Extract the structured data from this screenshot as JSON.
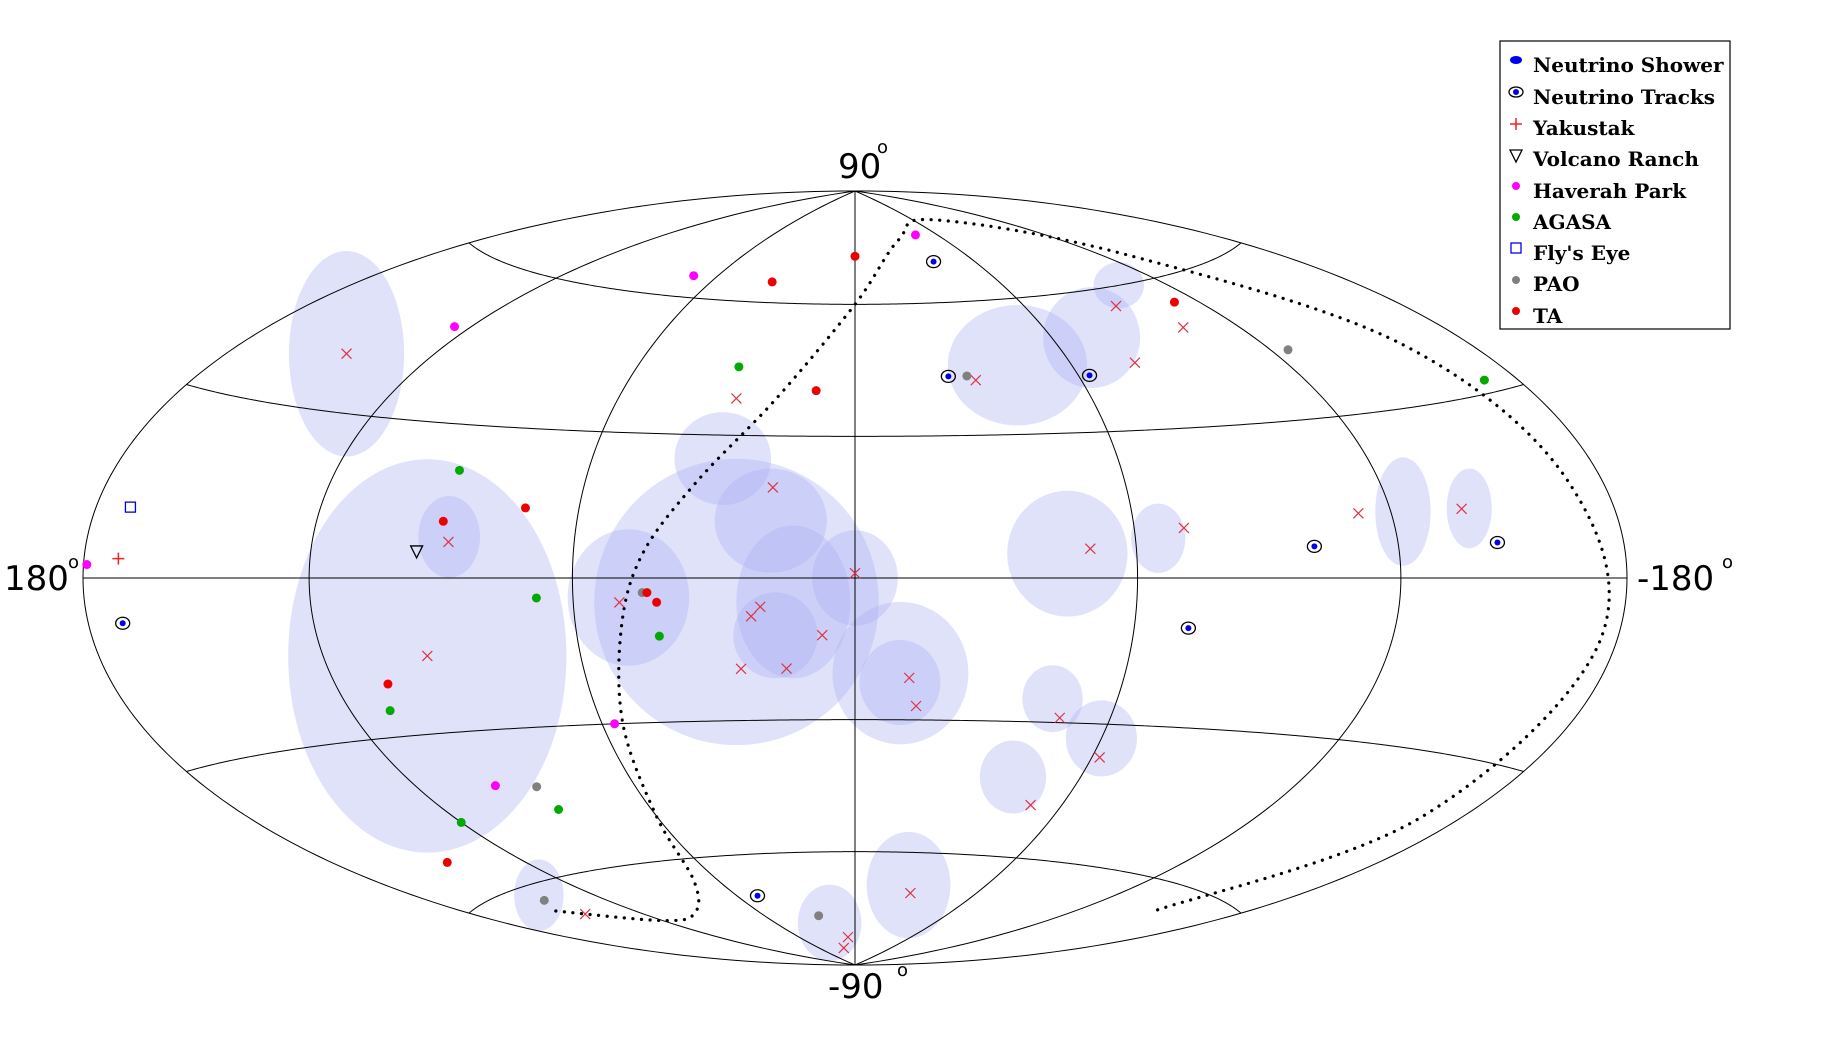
{
  "chart_data": {
    "type": "scatter",
    "projection": "Aitoff-Hammer (galactic coordinates)",
    "axis_labels": {
      "top": "90",
      "bottom": "-90",
      "left": "180",
      "right": "-180",
      "degree_symbol": "o"
    },
    "lon_range": [
      180,
      -180
    ],
    "lat_range": [
      -90,
      90
    ],
    "grid": true,
    "legend_position": "top-right",
    "colors": {
      "hotspot_fill": "#aab0f0",
      "grid": "#000000",
      "neutrino": "#0000ee",
      "yakustak": "#ee2222",
      "volcano_ranch": "#000000",
      "haverah_park": "#ff00ff",
      "agasa": "#00aa00",
      "flys_eye": "#0000ee",
      "pao": "#808080",
      "ta": "#ee0000",
      "cross": "#dd3344",
      "supergalactic_plane": "#000000"
    },
    "legend": [
      {
        "label": "Neutrino Shower",
        "marker": "shower-dot"
      },
      {
        "label": "Neutrino Tracks",
        "marker": "track-ring"
      },
      {
        "label": "Yakustak",
        "marker": "plus"
      },
      {
        "label": "Volcano Ranch",
        "marker": "triangle-down"
      },
      {
        "label": "Haverah Park",
        "marker": "dot-magenta"
      },
      {
        "label": "AGASA",
        "marker": "dot-green"
      },
      {
        "label": "Fly's Eye",
        "marker": "square"
      },
      {
        "label": "PAO",
        "marker": "dot-gray"
      },
      {
        "label": "TA",
        "marker": "dot-red"
      }
    ],
    "hotspots": [
      {
        "lon": 145,
        "lat": 40,
        "rlon": 20,
        "rlat": 24,
        "tilt": 0
      },
      {
        "lon": 95,
        "lat": -15,
        "rlon": 32,
        "rlat": 38,
        "tilt": 0
      },
      {
        "lon": 88,
        "lat": 8,
        "rlon": 7,
        "rlat": 8,
        "tilt": 0
      },
      {
        "lon": 30,
        "lat": 25,
        "rlon": 11,
        "rlat": 10,
        "tilt": 0
      },
      {
        "lon": 18,
        "lat": 12,
        "rlon": 12,
        "rlat": 11,
        "tilt": 0
      },
      {
        "lon": 25,
        "lat": -5,
        "rlon": 30,
        "rlat": 30,
        "tilt": 0
      },
      {
        "lon": 48,
        "lat": -4,
        "rlon": 13,
        "rlat": 14,
        "tilt": 0
      },
      {
        "lon": 13,
        "lat": -5,
        "rlon": 12,
        "rlat": 16,
        "tilt": 0
      },
      {
        "lon": 0,
        "lat": 0,
        "rlon": 9,
        "rlat": 10,
        "tilt": 0
      },
      {
        "lon": 17,
        "lat": -12,
        "rlon": 9,
        "rlat": 9,
        "tilt": 0
      },
      {
        "lon": -10,
        "lat": -20,
        "rlon": 15,
        "rlat": 15,
        "tilt": 0
      },
      {
        "lon": -10,
        "lat": -22,
        "rlon": 9,
        "rlat": 9,
        "tilt": 0
      },
      {
        "lon": -45,
        "lat": 45,
        "rlon": 20,
        "rlat": 14,
        "tilt": 0
      },
      {
        "lon": -45,
        "lat": 5,
        "rlon": 13,
        "rlat": 13,
        "tilt": 0
      },
      {
        "lon": -65,
        "lat": 8,
        "rlon": 6,
        "rlat": 7,
        "tilt": 0
      },
      {
        "lon": -72,
        "lat": 50,
        "rlon": 16,
        "rlat": 12,
        "tilt": 0
      },
      {
        "lon": -103,
        "lat": 60,
        "rlon": 12,
        "rlat": 6,
        "tilt": 0
      },
      {
        "lon": -123,
        "lat": 12,
        "rlon": 7,
        "rlat": 10,
        "tilt": 0
      },
      {
        "lon": -140,
        "lat": 12,
        "rlon": 6,
        "rlat": 7,
        "tilt": 0
      },
      {
        "lon": -45,
        "lat": -25,
        "rlon": 7,
        "rlat": 7,
        "tilt": 0
      },
      {
        "lon": -60,
        "lat": -33,
        "rlon": 9,
        "rlat": 8,
        "tilt": 0
      },
      {
        "lon": -42,
        "lat": -42,
        "rlon": 9,
        "rlat": 8,
        "tilt": 0
      },
      {
        "lon": -25,
        "lat": -68,
        "rlon": 20,
        "rlat": 13,
        "tilt": 0
      },
      {
        "lon": 20,
        "lat": -78,
        "rlon": 25,
        "rlat": 10,
        "tilt": 0
      },
      {
        "lon": 140,
        "lat": -62,
        "rlon": 15,
        "rlat": 9,
        "tilt": 0
      }
    ],
    "hotspot_centers": [
      {
        "lon": 145,
        "lat": 40
      },
      {
        "lon": 95,
        "lat": -15
      },
      {
        "lon": 88,
        "lat": 7
      },
      {
        "lon": 30,
        "lat": 38
      },
      {
        "lon": 18,
        "lat": 19
      },
      {
        "lon": 50,
        "lat": -5
      },
      {
        "lon": 20,
        "lat": -6
      },
      {
        "lon": 25,
        "lat": -19
      },
      {
        "lon": 22,
        "lat": -8
      },
      {
        "lon": 0,
        "lat": 1
      },
      {
        "lon": 7,
        "lat": -12
      },
      {
        "lon": 15,
        "lat": -19
      },
      {
        "lon": -12,
        "lat": -21
      },
      {
        "lon": -14,
        "lat": -27
      },
      {
        "lon": -32,
        "lat": 42
      },
      {
        "lon": -50,
        "lat": 6
      },
      {
        "lon": -71,
        "lat": 10
      },
      {
        "lon": -78,
        "lat": 44
      },
      {
        "lon": -91,
        "lat": 56
      },
      {
        "lon": -103,
        "lat": 50
      },
      {
        "lon": -112,
        "lat": 12
      },
      {
        "lon": -138,
        "lat": 12
      },
      {
        "lon": -48,
        "lat": -29
      },
      {
        "lon": -62,
        "lat": -37
      },
      {
        "lon": -51,
        "lat": -48
      },
      {
        "lon": -28,
        "lat": -70
      },
      {
        "lon": 8,
        "lat": -82
      },
      {
        "lon": 20,
        "lat": -85
      },
      {
        "lon": 143,
        "lat": -67
      }
    ],
    "neutrino_tracks": [
      {
        "lon": -40,
        "lat": 70
      },
      {
        "lon": -25,
        "lat": 43
      },
      {
        "lon": -63,
        "lat": 42
      },
      {
        "lon": -100,
        "lat": 6
      },
      {
        "lon": -145,
        "lat": 6
      },
      {
        "lon": -72,
        "lat": -10
      },
      {
        "lon": 170,
        "lat": -7
      },
      {
        "lon": 50,
        "lat": -70
      }
    ],
    "yakustak": [
      {
        "lon": 170,
        "lat": 3
      }
    ],
    "volcano_ranch": [
      {
        "lon": 95,
        "lat": 5
      }
    ],
    "haverah_park": [
      {
        "lon": 179,
        "lat": 2
      },
      {
        "lon": 125,
        "lat": 48
      },
      {
        "lon": 70,
        "lat": 65
      },
      {
        "lon": -45,
        "lat": 77
      },
      {
        "lon": 57,
        "lat": -30
      },
      {
        "lon": 98,
        "lat": -41
      }
    ],
    "agasa": [
      {
        "lon": 32,
        "lat": 45
      },
      {
        "lon": 90,
        "lat": 21
      },
      {
        "lon": 68,
        "lat": -4
      },
      {
        "lon": 42,
        "lat": -12
      },
      {
        "lon": 110,
        "lat": -25
      },
      {
        "lon": 120,
        "lat": -47
      },
      {
        "lon": 87,
        "lat": -47
      },
      {
        "lon": -170,
        "lat": 32
      }
    ],
    "flys_eye": [
      {
        "lon": 170,
        "lat": 11
      }
    ],
    "pao": [
      {
        "lon": 45,
        "lat": -3
      },
      {
        "lon": -30,
        "lat": 43
      },
      {
        "lon": -125,
        "lat": 43
      },
      {
        "lon": 87,
        "lat": -42
      },
      {
        "lon": 143,
        "lat": -63
      },
      {
        "lon": 25,
        "lat": -76
      }
    ],
    "ta": [
      {
        "lon": 0,
        "lat": 72
      },
      {
        "lon": 35,
        "lat": 65
      },
      {
        "lon": 10,
        "lat": 40
      },
      {
        "lon": 90,
        "lat": 11
      },
      {
        "lon": 72,
        "lat": 14
      },
      {
        "lon": 44,
        "lat": -3
      },
      {
        "lon": 42,
        "lat": -5
      },
      {
        "lon": 107,
        "lat": -20
      },
      {
        "lon": 145,
        "lat": -53
      },
      {
        "lon": -112,
        "lat": 55
      }
    ],
    "supergalactic_plane": [
      {
        "lon": 150,
        "lat": -65
      },
      {
        "lon": 120,
        "lat": -72
      },
      {
        "lon": 95,
        "lat": -72
      },
      {
        "lon": 70,
        "lat": -65
      },
      {
        "lon": 60,
        "lat": -50
      },
      {
        "lon": 55,
        "lat": -30
      },
      {
        "lon": 50,
        "lat": -10
      },
      {
        "lon": 45,
        "lat": 5
      },
      {
        "lon": 35,
        "lat": 20
      },
      {
        "lon": 20,
        "lat": 38
      },
      {
        "lon": 0,
        "lat": 60
      },
      {
        "lon": -30,
        "lat": 76
      },
      {
        "lon": -80,
        "lat": 80
      },
      {
        "lon": -130,
        "lat": 65
      },
      {
        "lon": -160,
        "lat": 40
      },
      {
        "lon": -170,
        "lat": 15
      },
      {
        "lon": -175,
        "lat": -10
      },
      {
        "lon": -168,
        "lat": -40
      },
      {
        "lon": -150,
        "lat": -65
      }
    ]
  }
}
